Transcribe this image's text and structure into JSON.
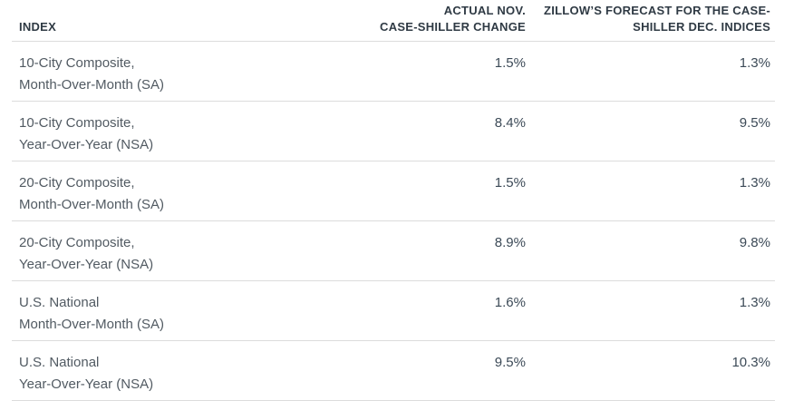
{
  "chart_data": {
    "type": "table",
    "title": "",
    "columns": [
      {
        "id": "index",
        "label": "INDEX",
        "lines": [
          "INDEX"
        ],
        "align": "left"
      },
      {
        "id": "actual",
        "label": "ACTUAL NOV. CASE-SHILLER CHANGE",
        "lines": [
          "ACTUAL NOV.",
          "CASE-SHILLER CHANGE"
        ],
        "align": "right"
      },
      {
        "id": "forecast",
        "label": "ZILLOW’S FORECAST FOR THE CASE-SHILLER DEC. INDICES",
        "lines": [
          "ZILLOW’S FORECAST FOR THE CASE-",
          "SHILLER DEC. INDICES"
        ],
        "align": "right"
      }
    ],
    "rows": [
      {
        "index_lines": [
          "10-City Composite,",
          "Month-Over-Month (SA)"
        ],
        "actual": "1.5%",
        "forecast": "1.3%"
      },
      {
        "index_lines": [
          "10-City Composite,",
          "Year-Over-Year (NSA)"
        ],
        "actual": "8.4%",
        "forecast": "9.5%"
      },
      {
        "index_lines": [
          "20-City Composite,",
          "Month-Over-Month (SA)"
        ],
        "actual": "1.5%",
        "forecast": "1.3%"
      },
      {
        "index_lines": [
          "20-City Composite,",
          "Year-Over-Year (NSA)"
        ],
        "actual": "8.9%",
        "forecast": "9.8%"
      },
      {
        "index_lines": [
          "U.S. National",
          "Month-Over-Month (SA)"
        ],
        "actual": "1.6%",
        "forecast": "1.3%"
      },
      {
        "index_lines": [
          "U.S. National",
          "Year-Over-Year (NSA)"
        ],
        "actual": "9.5%",
        "forecast": "10.3%"
      }
    ]
  },
  "colors": {
    "header_text": "#2f3a44",
    "body_text": "#515a62",
    "value_text": "#3c4a57",
    "divider": "#dcdcdc",
    "background": "#ffffff"
  }
}
